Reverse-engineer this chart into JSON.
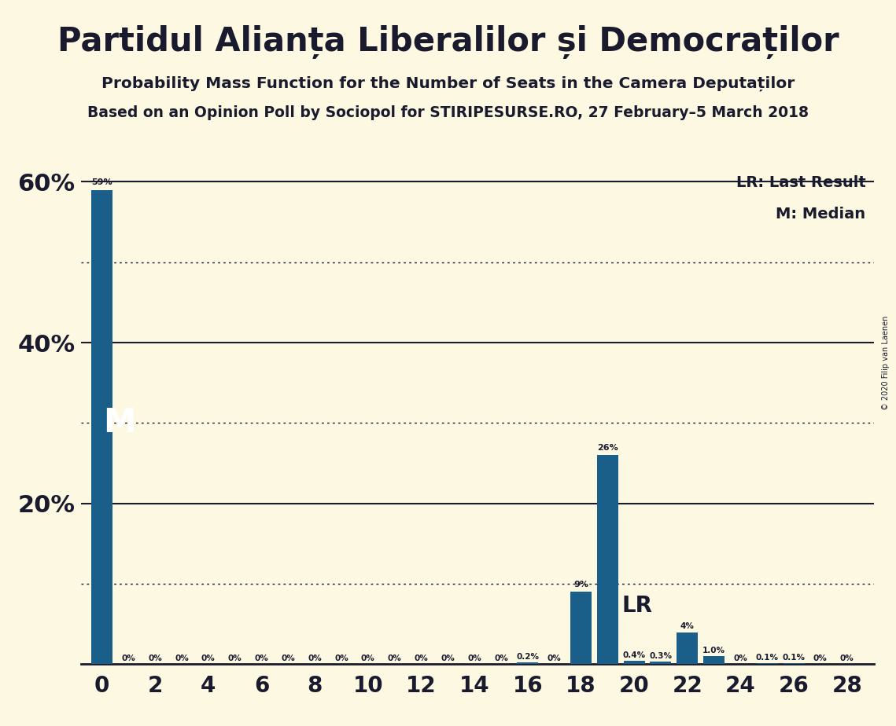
{
  "title": "Partidul Alianța Liberalilor și Democraților",
  "subtitle1": "Probability Mass Function for the Number of Seats in the Camera Deputaților",
  "subtitle2": "Based on an Opinion Poll by Sociopol for STIRIPESURSE.RO, 27 February–5 March 2018",
  "copyright": "© 2020 Filip van Laenen",
  "bar_color": "#1a5f8a",
  "background_color": "#fdf8e1",
  "text_color": "#1a1a2e",
  "seats": [
    0,
    1,
    2,
    3,
    4,
    5,
    6,
    7,
    8,
    9,
    10,
    11,
    12,
    13,
    14,
    15,
    16,
    17,
    18,
    19,
    20,
    21,
    22,
    23,
    24,
    25,
    26,
    27,
    28
  ],
  "probabilities": [
    59,
    0,
    0,
    0,
    0,
    0,
    0,
    0,
    0,
    0,
    0,
    0,
    0,
    0,
    0,
    0,
    0.2,
    0,
    9,
    26,
    0.4,
    0.3,
    4,
    1.0,
    0,
    0.1,
    0.1,
    0,
    0
  ],
  "labels": [
    "59%",
    "0%",
    "0%",
    "0%",
    "0%",
    "0%",
    "0%",
    "0%",
    "0%",
    "0%",
    "0%",
    "0%",
    "0%",
    "0%",
    "0%",
    "0%",
    "0.2%",
    "0%",
    "9%",
    "26%",
    "0.4%",
    "0.3%",
    "4%",
    "1.0%",
    "0%",
    "0.1%",
    "0.1%",
    "0%",
    "0%"
  ],
  "LR_seat": 19,
  "LR_label": "LR",
  "M_value": 30,
  "M_label": "M",
  "yticks": [
    0,
    20,
    40,
    60
  ],
  "ytick_labels": [
    "",
    "20%",
    "40%",
    "60%"
  ],
  "xticks": [
    0,
    2,
    4,
    6,
    8,
    10,
    12,
    14,
    16,
    18,
    20,
    22,
    24,
    26,
    28
  ],
  "ylim": [
    0,
    65
  ],
  "legend_LR": "LR: Last Result",
  "legend_M": "M: Median",
  "dotted_lines": [
    10,
    30,
    50
  ],
  "solid_lines": [
    20,
    40,
    60
  ]
}
